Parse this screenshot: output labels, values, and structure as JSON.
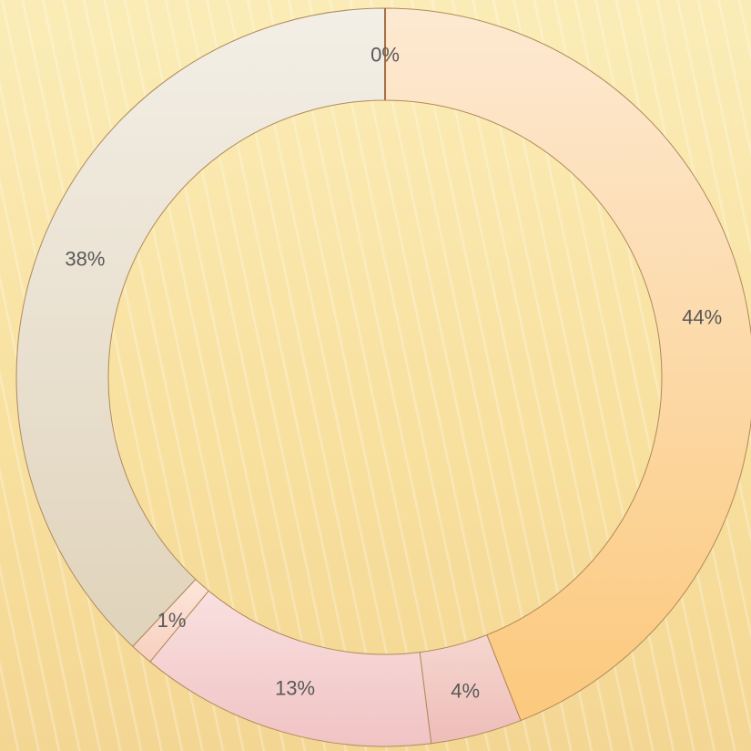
{
  "chart_data": {
    "type": "pie",
    "variant": "doughnut",
    "title": "",
    "categories": [
      "",
      "",
      "",
      "",
      "",
      ""
    ],
    "values": [
      44,
      4,
      13,
      1,
      38,
      0
    ],
    "labels": [
      "44%",
      "4%",
      "13%",
      "1%",
      "38%",
      "0%"
    ],
    "colors": [
      "#fddcad",
      "#f2cdc4",
      "#f6d3d4",
      "#fadcd0",
      "#ece3d3",
      "#f4e2cc"
    ],
    "legend": "none",
    "grid": false
  }
}
